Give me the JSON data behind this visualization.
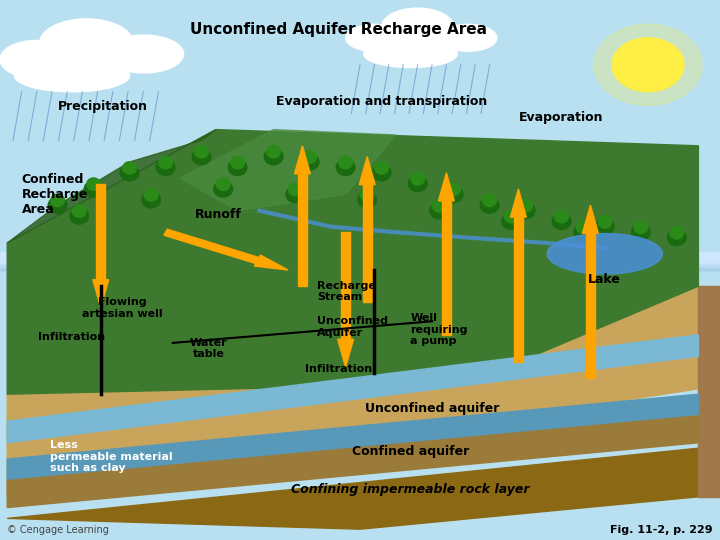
{
  "background_color": "#b8dce8",
  "labels": {
    "title": "Unconfined Aquifer Recharge Area",
    "precipitation": "Precipitation",
    "evap_transp": "Evaporation and transpiration",
    "evaporation": "Evaporation",
    "confined_recharge": "Confined\nRecharge\nArea",
    "runoff": "Runoff",
    "flowing_artesian": "Flowing\nartesian well",
    "infiltration1": "Infiltration",
    "water_table": "Water\ntable",
    "recharge_stream": "Recharge\nStream",
    "unconfined_aquifer_label": "Unconfined\nAquifer",
    "well_pump": "Well\nrequiring\na pump",
    "lake": "Lake",
    "infiltration2": "Infiltration",
    "unconfined_aquifer": "Unconfined aquifer",
    "confined_aquifer": "Confined aquifer",
    "confining_layer": "Confining impermeable rock layer",
    "less_permeable": "Less\npermeable material\nsuch as clay",
    "copyright": "© Cengage Learning",
    "fig_ref": "Fig. 11-2, p. 229"
  },
  "arrow_color": "#FFA500",
  "sky_color": "#b8e0f0",
  "ground_green_color": "#4a8c3f",
  "ground_brown_color": "#8B6914",
  "water_color": "#5b9ec9",
  "label_fontsize": 9,
  "title_fontsize": 11
}
